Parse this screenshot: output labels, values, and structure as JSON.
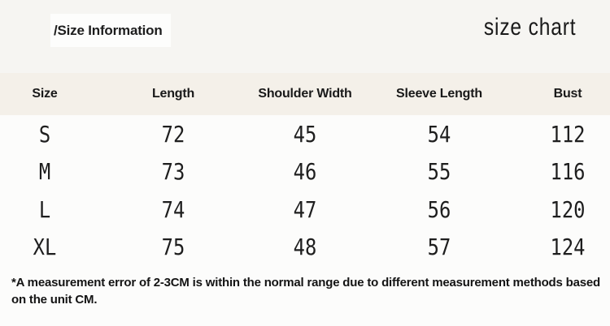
{
  "header": {
    "breadcrumb": "/Size Information",
    "title": "size chart"
  },
  "table": {
    "columns": [
      "Size",
      "Length",
      "Shoulder Width",
      "Sleeve Length",
      "Bust"
    ],
    "rows": [
      [
        "S",
        "72",
        "45",
        "54",
        "112"
      ],
      [
        "M",
        "73",
        "46",
        "55",
        "116"
      ],
      [
        "L",
        "74",
        "47",
        "56",
        "120"
      ],
      [
        "XL",
        "75",
        "48",
        "57",
        "124"
      ]
    ]
  },
  "footnote": "*A measurement error of 2-3CM is within the normal range due to different measurement methods based\non the unit CM.",
  "colors": {
    "top_strip_bg": "#f6f5f2",
    "header_band_bg": "#f4f0e9",
    "body_bg": "#fcfcfb",
    "text": "#1c1c1c"
  }
}
